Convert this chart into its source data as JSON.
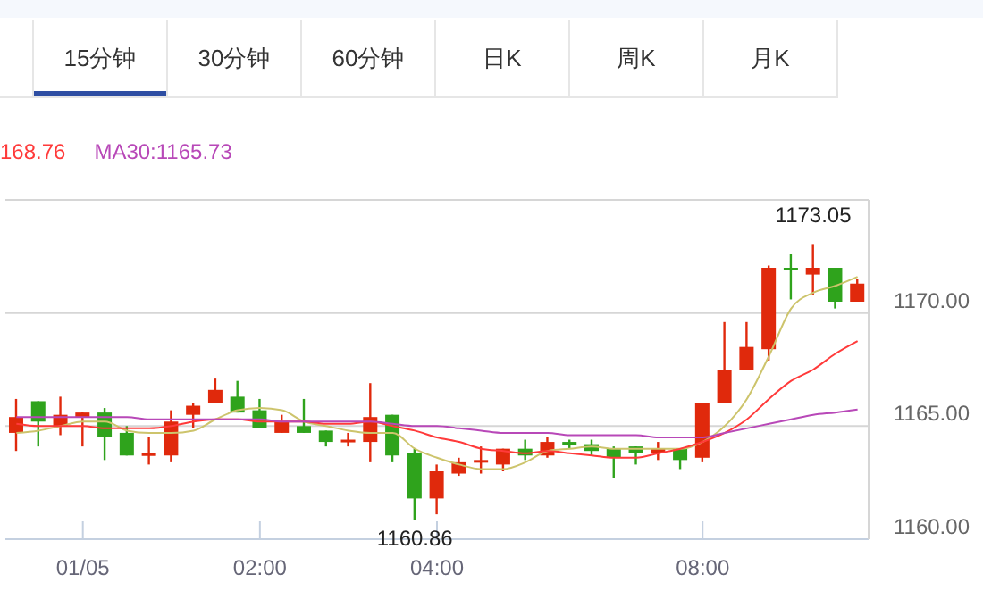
{
  "chart_data": {
    "type": "candlestick",
    "categories": [
      null,
      null,
      null,
      "01/05",
      null,
      null,
      null,
      null,
      null,
      null,
      null,
      "02:00",
      null,
      null,
      null,
      null,
      null,
      null,
      null,
      "04:00",
      null,
      null,
      null,
      null,
      null,
      null,
      null,
      null,
      null,
      null,
      null,
      "08:00",
      null,
      null,
      null,
      null,
      null,
      null,
      null
    ],
    "ohlc": [
      [
        1164.7,
        1166.2,
        1163.9,
        1165.4
      ],
      [
        1166.1,
        1166.1,
        1164.1,
        1165.2
      ],
      [
        1165.0,
        1166.3,
        1164.6,
        1165.5
      ],
      [
        1165.4,
        1165.6,
        1164.1,
        1165.6
      ],
      [
        1165.6,
        1165.8,
        1163.5,
        1164.5
      ],
      [
        1164.7,
        1165.0,
        1163.7,
        1163.7
      ],
      [
        1163.7,
        1164.5,
        1163.3,
        1163.8
      ],
      [
        1163.7,
        1165.7,
        1163.4,
        1165.2
      ],
      [
        1165.5,
        1166.0,
        1164.9,
        1165.9
      ],
      [
        1166.0,
        1167.1,
        1166.0,
        1166.6
      ],
      [
        1166.3,
        1167.0,
        1165.6,
        1165.6
      ],
      [
        1165.7,
        1166.2,
        1164.9,
        1164.9
      ],
      [
        1164.7,
        1165.5,
        1164.7,
        1165.2
      ],
      [
        1165.0,
        1166.2,
        1164.7,
        1164.7
      ],
      [
        1164.8,
        1164.8,
        1164.1,
        1164.3
      ],
      [
        1164.3,
        1164.7,
        1164.1,
        1164.4
      ],
      [
        1164.3,
        1166.9,
        1163.4,
        1165.4
      ],
      [
        1165.5,
        1165.5,
        1163.4,
        1163.7
      ],
      [
        1163.8,
        1164.0,
        1160.86,
        1161.8
      ],
      [
        1161.8,
        1163.3,
        1161.1,
        1163.0
      ],
      [
        1162.9,
        1163.6,
        1162.8,
        1163.4
      ],
      [
        1163.4,
        1164.1,
        1162.9,
        1163.5
      ],
      [
        1163.3,
        1164.0,
        1163.0,
        1164.0
      ],
      [
        1164.0,
        1164.4,
        1163.5,
        1163.7
      ],
      [
        1163.7,
        1164.5,
        1163.6,
        1164.3
      ],
      [
        1164.3,
        1164.4,
        1164.0,
        1164.2
      ],
      [
        1164.2,
        1164.4,
        1163.7,
        1163.9
      ],
      [
        1164.0,
        1164.1,
        1162.7,
        1163.6
      ],
      [
        1164.1,
        1164.1,
        1163.3,
        1163.8
      ],
      [
        1163.8,
        1164.3,
        1163.5,
        1164.0
      ],
      [
        1164.0,
        1164.0,
        1163.1,
        1163.5
      ],
      [
        1163.6,
        1166.0,
        1163.4,
        1166.0
      ],
      [
        1166.0,
        1169.6,
        1166.0,
        1167.5
      ],
      [
        1167.5,
        1169.6,
        1167.5,
        1168.5
      ],
      [
        1168.4,
        1172.1,
        1167.9,
        1172.0
      ],
      [
        1172.0,
        1172.6,
        1170.6,
        1171.9
      ],
      [
        1171.7,
        1173.05,
        1170.8,
        1172.0
      ],
      [
        1172.0,
        1172.0,
        1170.2,
        1170.5
      ],
      [
        1170.5,
        1171.5,
        1170.5,
        1171.3
      ]
    ],
    "colors": [
      "#e0290c",
      "#2fa31c",
      "#e0290c",
      "#e0290c",
      "#2fa31c",
      "#2fa31c",
      "#e0290c",
      "#e0290c",
      "#e0290c",
      "#e0290c",
      "#2fa31c",
      "#2fa31c",
      "#e0290c",
      "#2fa31c",
      "#2fa31c",
      "#e0290c",
      "#e0290c",
      "#2fa31c",
      "#2fa31c",
      "#e0290c",
      "#e0290c",
      "#e0290c",
      "#e0290c",
      "#2fa31c",
      "#e0290c",
      "#2fa31c",
      "#2fa31c",
      "#2fa31c",
      "#2fa31c",
      "#e0290c",
      "#2fa31c",
      "#e0290c",
      "#e0290c",
      "#e0290c",
      "#e0290c",
      "#2fa31c",
      "#e0290c",
      "#2fa31c",
      "#e0290c"
    ],
    "series": [
      {
        "type": "line",
        "color": "#cdc46c",
        "values": [
          1164.7,
          1164.8,
          1165.0,
          1165.2,
          1165.2,
          1164.8,
          1164.7,
          1164.7,
          1164.8,
          1165.3,
          1165.7,
          1165.8,
          1165.7,
          1165.2,
          1165.0,
          1164.8,
          1164.7,
          1164.7,
          1164.0,
          1163.6,
          1163.3,
          1163.1,
          1163.1,
          1163.4,
          1163.9,
          1164.0,
          1164.1,
          1164.0,
          1164.0,
          1164.0,
          1164.0,
          1164.3,
          1165.0,
          1166.2,
          1168.1,
          1170.2,
          1170.9,
          1171.2,
          1171.6
        ]
      },
      {
        "type": "line",
        "name": "168.76",
        "color": "#ff3a3a",
        "values": [
          1165.1,
          1165.0,
          1165.0,
          1165.0,
          1164.9,
          1164.9,
          1164.9,
          1165.0,
          1165.2,
          1165.3,
          1165.3,
          1165.2,
          1165.2,
          1165.2,
          1165.1,
          1165.1,
          1165.2,
          1165.0,
          1164.8,
          1164.5,
          1164.3,
          1164.0,
          1163.9,
          1163.8,
          1163.9,
          1163.8,
          1163.7,
          1163.6,
          1163.6,
          1163.8,
          1164.0,
          1164.3,
          1164.7,
          1165.3,
          1166.2,
          1167.0,
          1167.5,
          1168.2,
          1168.76
        ]
      },
      {
        "type": "line",
        "name": "MA30:1165.73",
        "color": "#b848b8",
        "values": [
          1165.4,
          1165.4,
          1165.4,
          1165.4,
          1165.4,
          1165.4,
          1165.3,
          1165.3,
          1165.3,
          1165.3,
          1165.3,
          1165.3,
          1165.2,
          1165.2,
          1165.2,
          1165.2,
          1165.2,
          1165.1,
          1165.0,
          1165.0,
          1164.9,
          1164.8,
          1164.7,
          1164.7,
          1164.7,
          1164.6,
          1164.6,
          1164.6,
          1164.6,
          1164.5,
          1164.5,
          1164.5,
          1164.7,
          1164.9,
          1165.1,
          1165.3,
          1165.5,
          1165.6,
          1165.73
        ]
      }
    ],
    "ylim": [
      1160,
      1175
    ],
    "yticks": [
      {
        "value": 1160,
        "label": "1160.00"
      },
      {
        "value": 1165,
        "label": "1165.00"
      },
      {
        "value": 1170,
        "label": "1170.00"
      },
      {
        "value": 1175,
        "label": null
      }
    ],
    "grid": "y",
    "legend": "top left",
    "annotations": [
      "15分钟",
      "30分钟",
      "60分钟",
      "日K",
      "周K",
      "月K",
      {
        "text": "1173.05",
        "y": 1173.05
      },
      {
        "text": "1160.86",
        "y": 1160.86
      }
    ]
  }
}
